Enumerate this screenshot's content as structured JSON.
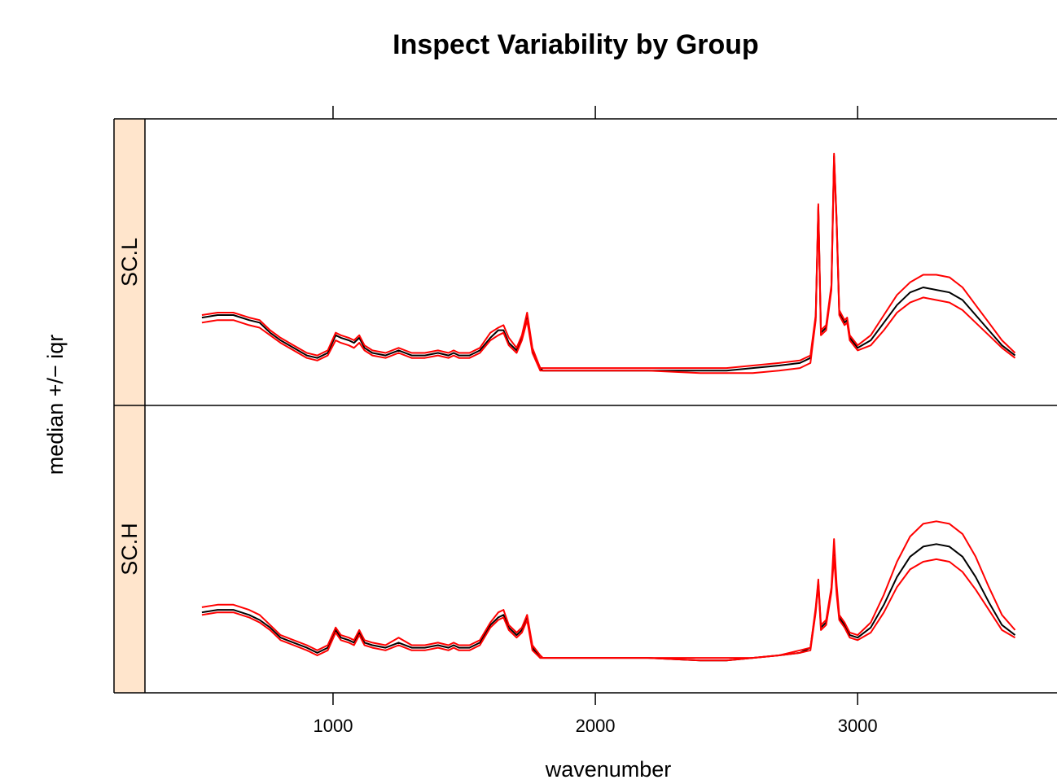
{
  "chart_data": {
    "type": "line",
    "title": "Inspect Variability by Group",
    "xlabel": "wavenumber",
    "ylabel": "median +/− iqr",
    "xlim": [
      165,
      3760
    ],
    "x_ticks": [
      1000,
      2000,
      3000
    ],
    "x_tick_labels": [
      "1000",
      "2000",
      "3000"
    ],
    "strip_color": "#ffe5cc",
    "y_ticks": "none",
    "grid": false,
    "legend": "none",
    "panels": [
      {
        "label": "SC.L",
        "ylim": [
          0,
          1
        ],
        "series": [
          {
            "color": "#000000",
            "x": [
              500,
              560,
              620,
              680,
              720,
              760,
              800,
              850,
              900,
              940,
              980,
              1010,
              1030,
              1060,
              1080,
              1100,
              1120,
              1150,
              1200,
              1250,
              1300,
              1350,
              1400,
              1440,
              1460,
              1480,
              1520,
              1560,
              1600,
              1630,
              1650,
              1670,
              1700,
              1720,
              1740,
              1760,
              1790,
              1800,
              2000,
              2200,
              2400,
              2500,
              2600,
              2700,
              2780,
              2820,
              2840,
              2850,
              2860,
              2880,
              2900,
              2910,
              2920,
              2930,
              2950,
              2960,
              2970,
              3000,
              3050,
              3100,
              3150,
              3200,
              3250,
              3300,
              3350,
              3400,
              3450,
              3500,
              3550,
              3600
            ],
            "y": [
              0.28,
              0.29,
              0.29,
              0.27,
              0.26,
              0.22,
              0.19,
              0.16,
              0.13,
              0.12,
              0.14,
              0.21,
              0.2,
              0.19,
              0.18,
              0.2,
              0.16,
              0.14,
              0.13,
              0.15,
              0.13,
              0.13,
              0.14,
              0.13,
              0.14,
              0.13,
              0.13,
              0.15,
              0.2,
              0.23,
              0.23,
              0.18,
              0.15,
              0.2,
              0.28,
              0.15,
              0.08,
              0.07,
              0.07,
              0.07,
              0.07,
              0.07,
              0.08,
              0.09,
              0.1,
              0.12,
              0.28,
              0.72,
              0.22,
              0.24,
              0.4,
              0.92,
              0.66,
              0.3,
              0.26,
              0.27,
              0.2,
              0.16,
              0.19,
              0.26,
              0.33,
              0.38,
              0.4,
              0.39,
              0.38,
              0.35,
              0.29,
              0.23,
              0.17,
              0.13
            ]
          },
          {
            "color": "#ff0000",
            "x": [
              500,
              560,
              620,
              680,
              720,
              760,
              800,
              850,
              900,
              940,
              980,
              1010,
              1030,
              1060,
              1080,
              1100,
              1120,
              1150,
              1200,
              1250,
              1300,
              1350,
              1400,
              1440,
              1460,
              1480,
              1520,
              1560,
              1600,
              1630,
              1650,
              1670,
              1700,
              1720,
              1740,
              1760,
              1790,
              1800,
              2000,
              2200,
              2400,
              2500,
              2600,
              2700,
              2780,
              2820,
              2840,
              2850,
              2860,
              2880,
              2900,
              2910,
              2920,
              2930,
              2950,
              2960,
              2970,
              3000,
              3050,
              3100,
              3150,
              3200,
              3250,
              3300,
              3350,
              3400,
              3450,
              3500,
              3550,
              3600
            ],
            "y": [
              0.29,
              0.3,
              0.3,
              0.28,
              0.27,
              0.23,
              0.2,
              0.17,
              0.14,
              0.13,
              0.15,
              0.22,
              0.21,
              0.2,
              0.19,
              0.21,
              0.17,
              0.15,
              0.14,
              0.16,
              0.14,
              0.14,
              0.15,
              0.14,
              0.15,
              0.14,
              0.14,
              0.16,
              0.22,
              0.24,
              0.25,
              0.2,
              0.16,
              0.21,
              0.3,
              0.16,
              0.08,
              0.08,
              0.08,
              0.08,
              0.08,
              0.08,
              0.09,
              0.1,
              0.11,
              0.13,
              0.29,
              0.73,
              0.23,
              0.25,
              0.41,
              0.93,
              0.67,
              0.31,
              0.27,
              0.28,
              0.21,
              0.17,
              0.21,
              0.29,
              0.37,
              0.42,
              0.45,
              0.45,
              0.44,
              0.4,
              0.33,
              0.26,
              0.19,
              0.14
            ]
          },
          {
            "color": "#ff0000",
            "x": [
              500,
              560,
              620,
              680,
              720,
              760,
              800,
              850,
              900,
              940,
              980,
              1010,
              1030,
              1060,
              1080,
              1100,
              1120,
              1150,
              1200,
              1250,
              1300,
              1350,
              1400,
              1440,
              1460,
              1480,
              1520,
              1560,
              1600,
              1630,
              1650,
              1670,
              1700,
              1720,
              1740,
              1760,
              1790,
              1800,
              2000,
              2200,
              2400,
              2500,
              2600,
              2700,
              2780,
              2820,
              2840,
              2850,
              2860,
              2880,
              2900,
              2910,
              2920,
              2930,
              2950,
              2960,
              2970,
              3000,
              3050,
              3100,
              3150,
              3200,
              3250,
              3300,
              3350,
              3400,
              3450,
              3500,
              3550,
              3600
            ],
            "y": [
              0.26,
              0.27,
              0.27,
              0.25,
              0.24,
              0.21,
              0.18,
              0.15,
              0.12,
              0.11,
              0.13,
              0.19,
              0.18,
              0.17,
              0.16,
              0.18,
              0.15,
              0.13,
              0.12,
              0.14,
              0.12,
              0.12,
              0.13,
              0.12,
              0.13,
              0.12,
              0.12,
              0.14,
              0.19,
              0.21,
              0.22,
              0.17,
              0.14,
              0.19,
              0.27,
              0.14,
              0.07,
              0.07,
              0.07,
              0.07,
              0.06,
              0.06,
              0.06,
              0.07,
              0.08,
              0.1,
              0.27,
              0.71,
              0.21,
              0.23,
              0.39,
              0.91,
              0.65,
              0.29,
              0.25,
              0.26,
              0.19,
              0.15,
              0.17,
              0.23,
              0.3,
              0.34,
              0.36,
              0.35,
              0.34,
              0.31,
              0.26,
              0.21,
              0.16,
              0.12
            ]
          }
        ]
      },
      {
        "label": "SC.H",
        "ylim": [
          0,
          1
        ],
        "series": [
          {
            "color": "#000000",
            "x": [
              500,
              560,
              620,
              680,
              720,
              760,
              800,
              850,
              900,
              940,
              980,
              1010,
              1030,
              1060,
              1080,
              1100,
              1120,
              1150,
              1200,
              1250,
              1300,
              1350,
              1400,
              1440,
              1460,
              1480,
              1520,
              1560,
              1600,
              1630,
              1650,
              1670,
              1700,
              1720,
              1740,
              1760,
              1790,
              1800,
              2000,
              2200,
              2400,
              2500,
              2600,
              2700,
              2780,
              2820,
              2840,
              2850,
              2860,
              2880,
              2900,
              2910,
              2920,
              2930,
              2950,
              2960,
              2970,
              3000,
              3050,
              3100,
              3150,
              3200,
              3250,
              3300,
              3350,
              3400,
              3450,
              3500,
              3550,
              3600
            ],
            "y": [
              0.25,
              0.26,
              0.26,
              0.24,
              0.22,
              0.19,
              0.15,
              0.13,
              0.11,
              0.09,
              0.11,
              0.18,
              0.15,
              0.14,
              0.13,
              0.17,
              0.13,
              0.12,
              0.11,
              0.13,
              0.11,
              0.11,
              0.12,
              0.11,
              0.12,
              0.11,
              0.11,
              0.13,
              0.2,
              0.23,
              0.24,
              0.19,
              0.16,
              0.18,
              0.23,
              0.11,
              0.07,
              0.07,
              0.07,
              0.07,
              0.06,
              0.06,
              0.07,
              0.08,
              0.09,
              0.11,
              0.26,
              0.37,
              0.19,
              0.21,
              0.34,
              0.5,
              0.34,
              0.23,
              0.2,
              0.18,
              0.16,
              0.15,
              0.19,
              0.28,
              0.39,
              0.47,
              0.51,
              0.52,
              0.51,
              0.47,
              0.39,
              0.29,
              0.2,
              0.16
            ]
          },
          {
            "color": "#ff0000",
            "x": [
              500,
              560,
              620,
              680,
              720,
              760,
              800,
              850,
              900,
              940,
              980,
              1010,
              1030,
              1060,
              1080,
              1100,
              1120,
              1150,
              1200,
              1250,
              1300,
              1350,
              1400,
              1440,
              1460,
              1480,
              1520,
              1560,
              1600,
              1630,
              1650,
              1670,
              1700,
              1720,
              1740,
              1760,
              1790,
              1800,
              2000,
              2200,
              2400,
              2500,
              2600,
              2700,
              2780,
              2820,
              2840,
              2850,
              2860,
              2880,
              2900,
              2910,
              2920,
              2930,
              2950,
              2960,
              2970,
              3000,
              3050,
              3100,
              3150,
              3200,
              3250,
              3300,
              3350,
              3400,
              3450,
              3500,
              3550,
              3600
            ],
            "y": [
              0.27,
              0.28,
              0.28,
              0.26,
              0.24,
              0.2,
              0.16,
              0.14,
              0.12,
              0.1,
              0.12,
              0.19,
              0.16,
              0.15,
              0.14,
              0.18,
              0.14,
              0.13,
              0.12,
              0.15,
              0.12,
              0.12,
              0.13,
              0.12,
              0.13,
              0.12,
              0.12,
              0.14,
              0.21,
              0.25,
              0.26,
              0.2,
              0.17,
              0.19,
              0.24,
              0.12,
              0.08,
              0.07,
              0.07,
              0.07,
              0.07,
              0.07,
              0.07,
              0.08,
              0.1,
              0.11,
              0.27,
              0.38,
              0.2,
              0.22,
              0.35,
              0.54,
              0.36,
              0.24,
              0.21,
              0.19,
              0.17,
              0.16,
              0.21,
              0.32,
              0.45,
              0.55,
              0.6,
              0.61,
              0.6,
              0.56,
              0.47,
              0.35,
              0.24,
              0.18
            ]
          },
          {
            "color": "#ff0000",
            "x": [
              500,
              560,
              620,
              680,
              720,
              760,
              800,
              850,
              900,
              940,
              980,
              1010,
              1030,
              1060,
              1080,
              1100,
              1120,
              1150,
              1200,
              1250,
              1300,
              1350,
              1400,
              1440,
              1460,
              1480,
              1520,
              1560,
              1600,
              1630,
              1650,
              1670,
              1700,
              1720,
              1740,
              1760,
              1790,
              1800,
              2000,
              2200,
              2400,
              2500,
              2600,
              2700,
              2780,
              2820,
              2840,
              2850,
              2860,
              2880,
              2900,
              2910,
              2920,
              2930,
              2950,
              2960,
              2970,
              3000,
              3050,
              3100,
              3150,
              3200,
              3250,
              3300,
              3350,
              3400,
              3450,
              3500,
              3550,
              3600
            ],
            "y": [
              0.24,
              0.25,
              0.25,
              0.23,
              0.21,
              0.18,
              0.14,
              0.12,
              0.1,
              0.08,
              0.1,
              0.17,
              0.14,
              0.13,
              0.12,
              0.16,
              0.12,
              0.11,
              0.1,
              0.12,
              0.1,
              0.1,
              0.11,
              0.1,
              0.11,
              0.1,
              0.1,
              0.12,
              0.19,
              0.22,
              0.23,
              0.18,
              0.15,
              0.17,
              0.22,
              0.1,
              0.07,
              0.07,
              0.07,
              0.07,
              0.06,
              0.06,
              0.07,
              0.08,
              0.09,
              0.1,
              0.25,
              0.36,
              0.18,
              0.2,
              0.33,
              0.47,
              0.32,
              0.22,
              0.19,
              0.17,
              0.15,
              0.14,
              0.17,
              0.25,
              0.35,
              0.42,
              0.45,
              0.46,
              0.45,
              0.41,
              0.34,
              0.26,
              0.18,
              0.15
            ]
          }
        ]
      }
    ]
  }
}
